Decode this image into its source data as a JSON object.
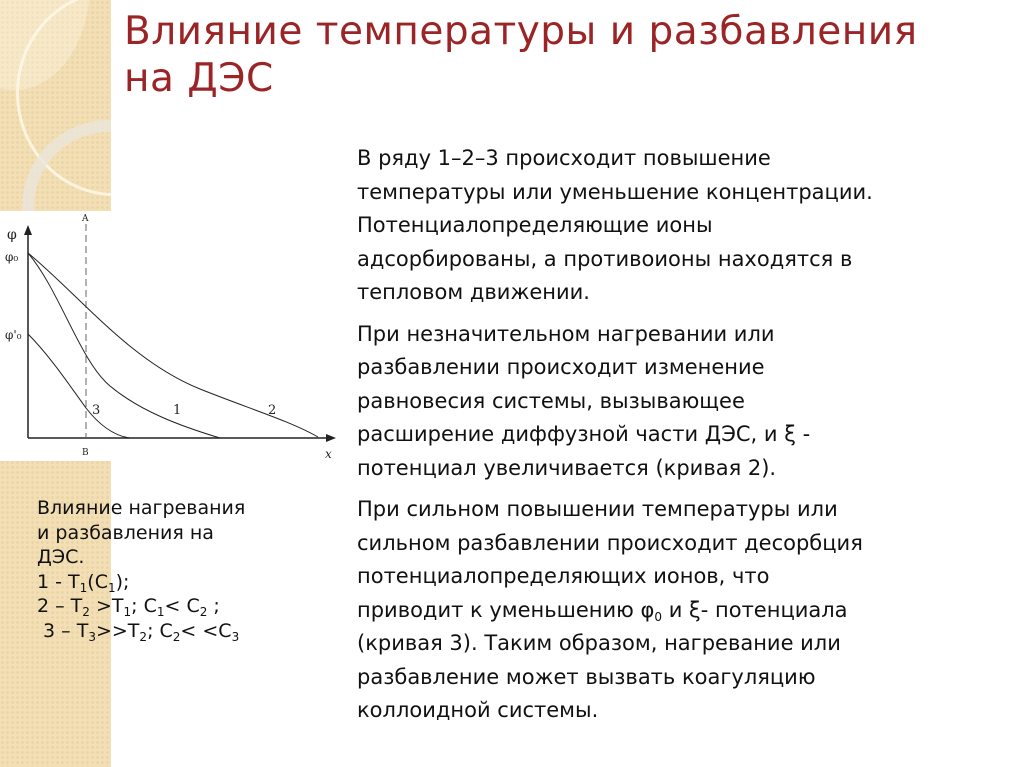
{
  "title": {
    "lines": [
      "Влияние температуры и разбавления",
      "на ДЭС"
    ]
  },
  "accent_color": "#9b2526",
  "figure": {
    "y_axis_label": "φ",
    "x_axis_label": "x",
    "phi0_label": "φ₀",
    "phi0_prime_label": "φ'₀",
    "line_top_label": "A",
    "line_bottom_label": "B",
    "curve_labels": [
      "1",
      "2",
      "3"
    ]
  },
  "caption": {
    "lines": [
      [
        {
          "t": "Влияние нагревания"
        }
      ],
      [
        {
          "t": "и разбавления на"
        }
      ],
      [
        {
          "t": "ДЭС."
        }
      ],
      [
        {
          "t": "1 - T"
        },
        {
          "t": "1",
          "sub": true
        },
        {
          "t": "(C"
        },
        {
          "t": "1",
          "sub": true
        },
        {
          "t": ");"
        }
      ],
      [
        {
          "t": "2 – T"
        },
        {
          "t": "2",
          "sub": true
        },
        {
          "t": " >T"
        },
        {
          "t": "1",
          "sub": true
        },
        {
          "t": "; C"
        },
        {
          "t": "1",
          "sub": true
        },
        {
          "t": "< C"
        },
        {
          "t": "2",
          "sub": true
        },
        {
          "t": " ;"
        }
      ],
      [
        {
          "t": " 3 – T"
        },
        {
          "t": "3",
          "sub": true
        },
        {
          "t": ">>T"
        },
        {
          "t": "2",
          "sub": true
        },
        {
          "t": "; C"
        },
        {
          "t": "2",
          "sub": true
        },
        {
          "t": "< <C"
        },
        {
          "t": "3",
          "sub": true
        }
      ]
    ]
  },
  "body": {
    "paragraphs": [
      [
        [
          {
            "t": "В ряду 1–2–3 происходит повышение"
          }
        ],
        [
          {
            "t": "температуры или уменьшение концентрации."
          }
        ],
        [
          {
            "t": "Потенциалопределяющие ионы"
          }
        ],
        [
          {
            "t": "адсорбированы, а противоионы находятся в"
          }
        ],
        [
          {
            "t": "тепловом движении."
          }
        ]
      ],
      [
        [
          {
            "t": "При незначительном нагревании или"
          }
        ],
        [
          {
            "t": "разбавлении происходит изменение"
          }
        ],
        [
          {
            "t": "равновесия системы, вызывающее"
          }
        ],
        [
          {
            "t": "расширение диффузной части ДЭС, и ξ -"
          }
        ],
        [
          {
            "t": "потенциал увеличивается (кривая 2)."
          }
        ]
      ],
      [
        [
          {
            "t": "При сильном повышении температуры или"
          }
        ],
        [
          {
            "t": "сильном разбавлении происходит десорбция"
          }
        ],
        [
          {
            "t": "потенциалопределяющих ионов, что"
          }
        ],
        [
          {
            "t": "приводит к уменьшению φ"
          },
          {
            "t": "0",
            "sub": true
          },
          {
            "t": " и ξ- потенциала"
          }
        ],
        [
          {
            "t": "(кривая 3). Таким образом, нагревание или"
          }
        ],
        [
          {
            "t": "разбавление может вызвать коагуляцию"
          }
        ],
        [
          {
            "t": "коллоидной системы."
          }
        ]
      ]
    ]
  }
}
